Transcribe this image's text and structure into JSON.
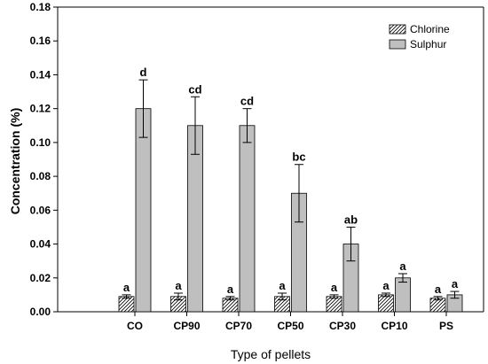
{
  "chart_data": {
    "type": "bar",
    "xlabel": "Type of pellets",
    "ylabel": "Concentration (%)",
    "ylim": [
      0,
      0.18
    ],
    "y_ticks": [
      "0.00",
      "0.02",
      "0.04",
      "0.06",
      "0.08",
      "0.10",
      "0.12",
      "0.14",
      "0.16",
      "0.18"
    ],
    "grid": false,
    "legend_position": "top-right",
    "categories": [
      "CO",
      "CP90",
      "CP70",
      "CP50",
      "CP30",
      "CP10",
      "PS"
    ],
    "series": [
      {
        "name": "Chlorine",
        "pattern": "hatched",
        "color": "#ffffff",
        "values": [
          0.009,
          0.009,
          0.008,
          0.009,
          0.009,
          0.01,
          0.008
        ],
        "errors": [
          0.001,
          0.002,
          0.001,
          0.002,
          0.001,
          0.001,
          0.001
        ],
        "labels": [
          "a",
          "a",
          "a",
          "a",
          "a",
          "a",
          "a"
        ]
      },
      {
        "name": "Sulphur",
        "pattern": "solid",
        "color": "#bfbfbf",
        "values": [
          0.12,
          0.11,
          0.11,
          0.07,
          0.04,
          0.02,
          0.01
        ],
        "errors": [
          0.017,
          0.017,
          0.01,
          0.017,
          0.01,
          0.0025,
          0.002
        ],
        "labels": [
          "d",
          "cd",
          "cd",
          "bc",
          "ab",
          "a",
          "a"
        ]
      }
    ]
  }
}
